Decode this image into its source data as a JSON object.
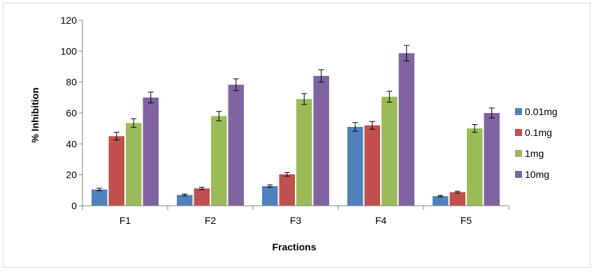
{
  "chart_data": {
    "type": "bar",
    "xlabel": "Fractions",
    "ylabel": "% Inhibition",
    "ylim": [
      0,
      120
    ],
    "ytick_step": 20,
    "categories": [
      "F1",
      "F2",
      "F3",
      "F4",
      "F5"
    ],
    "series": [
      {
        "name": "0.01mg",
        "color": "#4f81bd",
        "values": [
          10.5,
          7.0,
          12.7,
          51.0,
          6.2
        ],
        "errors": [
          0.8,
          0.6,
          0.8,
          2.8,
          0.5
        ]
      },
      {
        "name": "0.1mg",
        "color": "#c0504d",
        "values": [
          45.0,
          11.2,
          20.3,
          52.0,
          8.8
        ],
        "errors": [
          2.5,
          0.8,
          1.2,
          2.5,
          0.6
        ]
      },
      {
        "name": "1mg",
        "color": "#9bbb59",
        "values": [
          53.5,
          58.0,
          69.0,
          70.5,
          50.0
        ],
        "errors": [
          2.8,
          3.0,
          3.5,
          3.5,
          2.5
        ]
      },
      {
        "name": "10mg",
        "color": "#8064a2",
        "values": [
          70.0,
          78.3,
          84.0,
          98.7,
          60.0
        ],
        "errors": [
          3.5,
          3.8,
          4.0,
          5.0,
          3.2
        ]
      }
    ],
    "legend_position": "right",
    "grid": false
  }
}
